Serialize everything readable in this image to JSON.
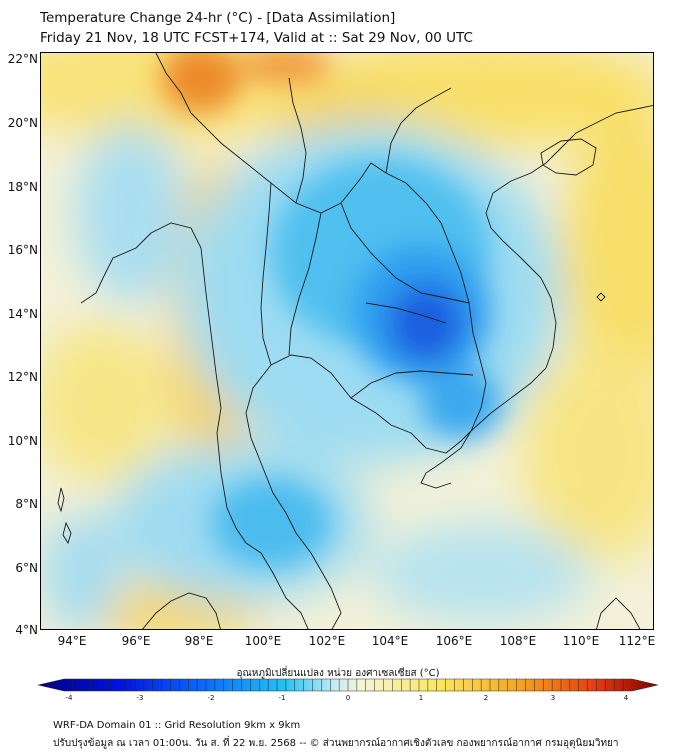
{
  "header": {
    "title_line1": "Temperature Change 24-hr (°C) - [Data Assimilation]",
    "title_line2": "Friday 21 Nov, 18 UTC FCST+174, Valid at :: Sat 29 Nov, 00 UTC"
  },
  "map": {
    "lat_labels": [
      "22°N",
      "20°N",
      "18°N",
      "16°N",
      "14°N",
      "12°N",
      "10°N",
      "8°N",
      "6°N",
      "4°N"
    ],
    "lon_labels": [
      "94°E",
      "96°E",
      "98°E",
      "100°E",
      "102°E",
      "104°E",
      "106°E",
      "108°E",
      "110°E",
      "112°E"
    ],
    "extent": {
      "lon_min": 93,
      "lon_max": 112.3,
      "lat_min": 4,
      "lat_max": 22.2
    },
    "colors": {
      "land_outline": "#1a1a1a",
      "coldest": "#1f3fd8",
      "cold": "#7fd0f2",
      "neutral": "#f4f6f2",
      "warm": "#f7dd5c",
      "hot": "#ee7a22"
    }
  },
  "colorbar": {
    "title": "อุณหภูมิเปลี่ยนแปลง หน่วย องศาเซลเซียส (°C)",
    "ticks": [
      "-4",
      "-3",
      "-2",
      "-1",
      "0",
      "1",
      "2",
      "3",
      "4"
    ],
    "colors": [
      "#00007f",
      "#0012e0",
      "#0a6cff",
      "#24c4f2",
      "#c8ecf4",
      "#f6f4d6",
      "#fbe65a",
      "#f6a21f",
      "#e63a0e",
      "#7f0000"
    ]
  },
  "footer": {
    "line1": "WRF-DA Domain 01 :: Grid Resolution 9km x 9km",
    "line2": "ปรับปรุงข้อมูล ณ เวลา 01:00น. วัน ส. ที่ 22 พ.ย. 2568 -- © ส่วนพยากรณ์อากาศเชิงตัวเลข กองพยากรณ์อากาศ กรมอุตุนิยมวิทยา"
  }
}
